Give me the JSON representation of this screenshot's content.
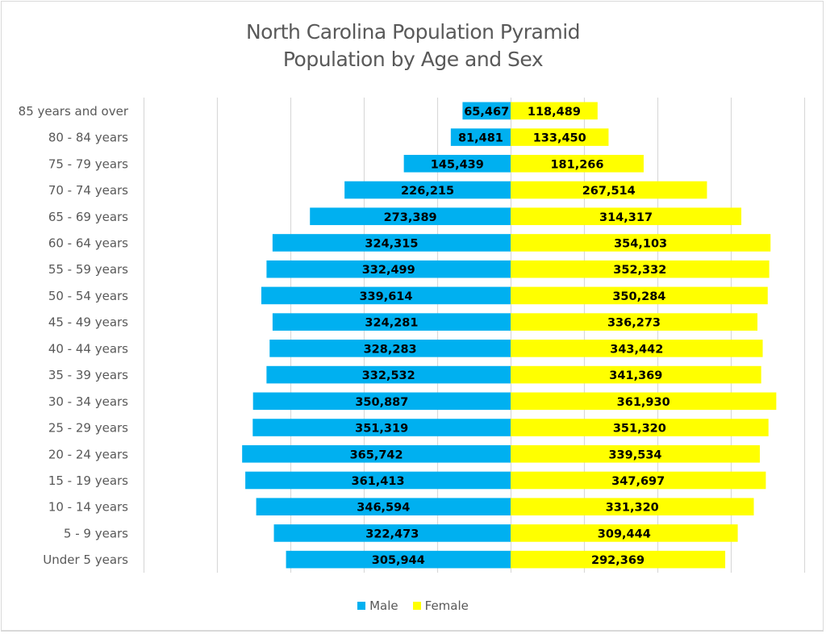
{
  "chart_data": {
    "type": "bar",
    "orientation": "horizontal-population-pyramid",
    "title": "North Carolina Population Pyramid",
    "subtitle": "Population by Age and Sex",
    "xlabel": "",
    "ylabel": "",
    "xlim": [
      -500000,
      400000
    ],
    "x_gridline_step": 100000,
    "grid": true,
    "tick_labels_shown": false,
    "legend_position": "bottom",
    "categories": [
      "85 years and over",
      "80 - 84 years",
      "75 - 79 years",
      "70 - 74 years",
      "65 - 69 years",
      "60 - 64 years",
      "55 - 59 years",
      "50 - 54 years",
      "45 - 49 years",
      "40 - 44 years",
      "35 - 39 years",
      "30 - 34 years",
      "25 - 29 years",
      "20 - 24 years",
      "15 - 19 years",
      "10 - 14 years",
      "5 - 9 years",
      "Under 5 years"
    ],
    "series": [
      {
        "name": "Male",
        "color": "#00b0f0",
        "side": "left",
        "values": [
          65467,
          81481,
          145439,
          226215,
          273389,
          324315,
          332499,
          339614,
          324281,
          328283,
          332532,
          350887,
          351319,
          365742,
          361413,
          346594,
          322473,
          305944
        ],
        "labels": [
          "65,467",
          "81,481",
          "145,439",
          "226,215",
          "273,389",
          "324,315",
          "332,499",
          "339,614",
          "324,281",
          "328,283",
          "332,532",
          "350,887",
          "351,319",
          "365,742",
          "361,413",
          "346,594",
          "322,473",
          "305,944"
        ]
      },
      {
        "name": "Female",
        "color": "#ffff00",
        "side": "right",
        "values": [
          118489,
          133450,
          181266,
          267514,
          314317,
          354103,
          352332,
          350284,
          336273,
          343442,
          341369,
          361930,
          351320,
          339534,
          347697,
          331320,
          309444,
          292369
        ],
        "labels": [
          "118,489",
          "133,450",
          "181,266",
          "267,514",
          "314,317",
          "354,103",
          "352,332",
          "350,284",
          "336,273",
          "343,442",
          "341,369",
          "361,930",
          "351,320",
          "339,534",
          "347,697",
          "331,320",
          "309,444",
          "292,369"
        ]
      }
    ]
  },
  "legend": {
    "items": [
      {
        "label": "Male",
        "color": "#00b0f0"
      },
      {
        "label": "Female",
        "color": "#ffff00"
      }
    ]
  }
}
